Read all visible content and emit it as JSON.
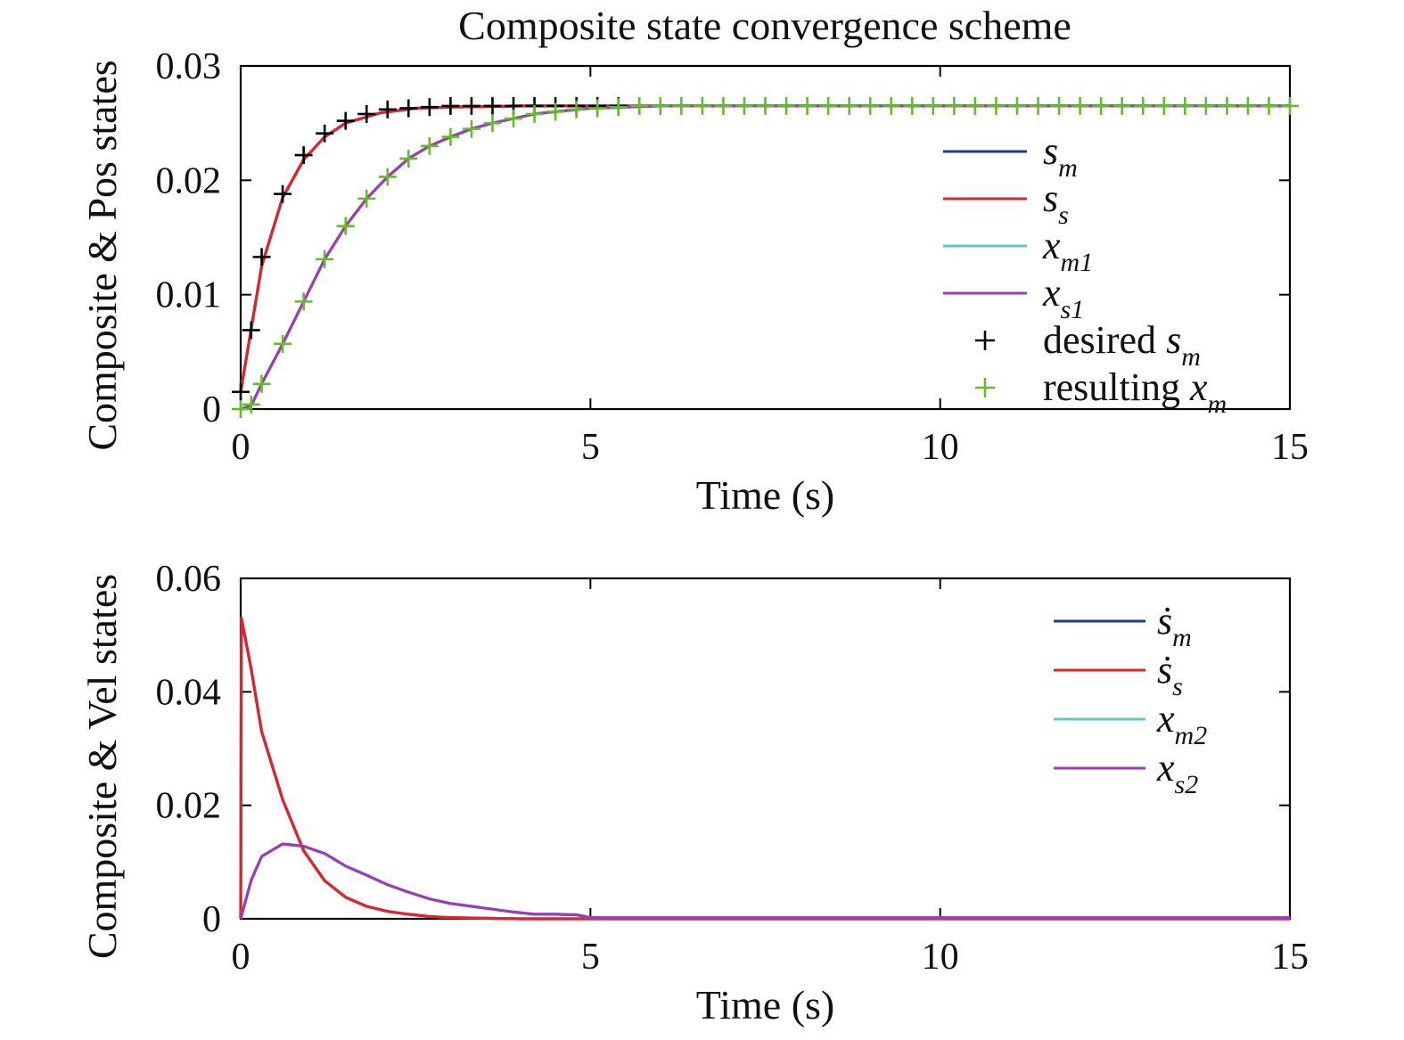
{
  "title": "Composite state convergence scheme",
  "colors": {
    "blue": "#1f3c8f",
    "red": "#e0242b",
    "cyan": "#5cc8c8",
    "purple": "#9b3db5",
    "black": "#000000",
    "green": "#66bb2a"
  },
  "chart_data": [
    {
      "type": "line",
      "xlabel": "Time (s)",
      "ylabel": "Composite & Pos states",
      "xlim": [
        0,
        15
      ],
      "ylim": [
        0,
        0.03
      ],
      "xticks": [
        "0",
        "5",
        "10",
        "15"
      ],
      "yticks": [
        "0",
        "0.01",
        "0.02",
        "0.03"
      ],
      "grid": false,
      "legend_placement": "right",
      "series": [
        {
          "name": "s_m",
          "label_main": "s",
          "label_sub": "m",
          "marker": "line",
          "color": "blue",
          "x": [
            0,
            0.3,
            0.6,
            0.9,
            1.2,
            1.5,
            2,
            2.5,
            3,
            4,
            5,
            6,
            15
          ],
          "y": [
            0.0015,
            0.0125,
            0.0185,
            0.0218,
            0.0238,
            0.025,
            0.0259,
            0.0263,
            0.0264,
            0.0265,
            0.0265,
            0.0265,
            0.0265
          ]
        },
        {
          "name": "s_s",
          "label_main": "s",
          "label_sub": "s",
          "marker": "line",
          "color": "red",
          "x": [
            0,
            0.3,
            0.6,
            0.9,
            1.2,
            1.5,
            2,
            2.5,
            3,
            4,
            5,
            6,
            15
          ],
          "y": [
            0.0015,
            0.0125,
            0.0185,
            0.0218,
            0.0238,
            0.025,
            0.0259,
            0.0263,
            0.0264,
            0.0265,
            0.0265,
            0.0265,
            0.0265
          ]
        },
        {
          "name": "x_m1",
          "label_main": "x",
          "label_sub": "m1",
          "marker": "line",
          "color": "cyan",
          "x": [
            0,
            0.15,
            0.3,
            0.6,
            0.9,
            1.2,
            1.5,
            1.8,
            2.1,
            2.4,
            2.7,
            3,
            3.3,
            3.6,
            3.9,
            4.2,
            4.5,
            5,
            6,
            15
          ],
          "y": [
            0,
            0.0003,
            0.0022,
            0.0057,
            0.0094,
            0.0131,
            0.016,
            0.0184,
            0.0203,
            0.0219,
            0.023,
            0.0238,
            0.0245,
            0.025,
            0.0254,
            0.0258,
            0.026,
            0.0263,
            0.0265,
            0.0265
          ]
        },
        {
          "name": "x_s1",
          "label_main": "x",
          "label_sub": "s1",
          "marker": "line",
          "color": "purple",
          "x": [
            0,
            0.15,
            0.3,
            0.6,
            0.9,
            1.2,
            1.5,
            1.8,
            2.1,
            2.4,
            2.7,
            3,
            3.3,
            3.6,
            3.9,
            4.2,
            4.5,
            5,
            6,
            15
          ],
          "y": [
            0,
            0.0003,
            0.0022,
            0.0057,
            0.0094,
            0.0131,
            0.016,
            0.0184,
            0.0203,
            0.0219,
            0.023,
            0.0238,
            0.0245,
            0.025,
            0.0254,
            0.0258,
            0.026,
            0.0263,
            0.0265,
            0.0265
          ]
        },
        {
          "name": "desired s_m",
          "label_main": "desired s",
          "label_sub": "m",
          "marker": "plus",
          "color": "black",
          "x": [
            0,
            0.15,
            0.3,
            0.6,
            0.9,
            1.2,
            1.5,
            1.8,
            2.1,
            2.4,
            2.7,
            3,
            3.3,
            3.6,
            3.9,
            4.2,
            4.5,
            4.8,
            5.1,
            5.4
          ],
          "y": [
            0.0015,
            0.0069,
            0.0133,
            0.0188,
            0.0222,
            0.0241,
            0.0252,
            0.0258,
            0.0262,
            0.0263,
            0.0264,
            0.0265,
            0.0265,
            0.0265,
            0.0265,
            0.0265,
            0.0265,
            0.0265,
            0.0265,
            0.0265
          ]
        },
        {
          "name": "resulting x_m",
          "label_main": "resulting x",
          "label_sub": "m",
          "marker": "plus",
          "color": "green",
          "x": [
            0,
            0.15,
            0.3,
            0.6,
            0.9,
            1.2,
            1.5,
            1.8,
            2.1,
            2.4,
            2.7,
            3,
            3.3,
            3.6,
            3.9,
            4.2,
            4.5,
            4.8,
            5.1,
            5.4,
            5.7,
            6,
            6.3,
            6.6,
            6.9,
            7.2,
            7.5,
            7.8,
            8.1,
            8.4,
            8.7,
            9,
            9.3,
            9.6,
            9.9,
            10.2,
            10.5,
            10.8,
            11.1,
            11.4,
            11.7,
            12,
            12.3,
            12.6,
            12.9,
            13.2,
            13.5,
            13.8,
            14.1,
            14.4,
            14.7,
            15
          ],
          "y": [
            0,
            0.0004,
            0.0022,
            0.0057,
            0.0094,
            0.0131,
            0.016,
            0.0184,
            0.0203,
            0.0219,
            0.023,
            0.0238,
            0.0245,
            0.025,
            0.0254,
            0.0258,
            0.026,
            0.0262,
            0.0263,
            0.0264,
            0.0265,
            0.0265,
            0.0265,
            0.0265,
            0.0265,
            0.0265,
            0.0265,
            0.0265,
            0.0265,
            0.0265,
            0.0265,
            0.0265,
            0.0265,
            0.0265,
            0.0265,
            0.0265,
            0.0265,
            0.0265,
            0.0265,
            0.0265,
            0.0265,
            0.0265,
            0.0265,
            0.0265,
            0.0265,
            0.0265,
            0.0265,
            0.0265,
            0.0265,
            0.0265,
            0.0265,
            0.0265
          ]
        }
      ]
    },
    {
      "type": "line",
      "xlabel": "Time (s)",
      "ylabel": "Composite & Vel states",
      "xlim": [
        0,
        15
      ],
      "ylim": [
        0,
        0.06
      ],
      "xticks": [
        "0",
        "5",
        "10",
        "15"
      ],
      "yticks": [
        "0",
        "0.02",
        "0.04",
        "0.06"
      ],
      "grid": false,
      "legend_placement": "top-right",
      "series": [
        {
          "name": "ṡ_m",
          "label_main": "ṡ",
          "label_sub": "m",
          "marker": "line",
          "color": "blue",
          "x": [
            0,
            0.01,
            0.15,
            0.3,
            0.6,
            0.9,
            1.2,
            1.5,
            1.8,
            2.1,
            2.4,
            2.7,
            3,
            3.5,
            4,
            5,
            15
          ],
          "y": [
            0,
            0.053,
            0.044,
            0.033,
            0.021,
            0.012,
            0.0067,
            0.0038,
            0.0022,
            0.0013,
            0.0008,
            0.0004,
            0.0002,
            0.0001,
            0,
            0,
            0
          ]
        },
        {
          "name": "ṡ_s",
          "label_main": "ṡ",
          "label_sub": "s",
          "marker": "line",
          "color": "red",
          "x": [
            0,
            0.01,
            0.15,
            0.3,
            0.6,
            0.9,
            1.2,
            1.5,
            1.8,
            2.1,
            2.4,
            2.7,
            3,
            3.5,
            4,
            5,
            15
          ],
          "y": [
            0,
            0.053,
            0.044,
            0.033,
            0.021,
            0.012,
            0.0067,
            0.0038,
            0.0022,
            0.0013,
            0.0008,
            0.0004,
            0.0002,
            0.0001,
            0,
            0,
            0
          ]
        },
        {
          "name": "x_m2",
          "label_main": "x",
          "label_sub": "m2",
          "marker": "line",
          "color": "cyan",
          "x": [
            0,
            0.15,
            0.3,
            0.6,
            0.9,
            1.2,
            1.5,
            1.8,
            2.1,
            2.4,
            2.7,
            3,
            3.3,
            3.6,
            3.9,
            4.2,
            4.5,
            4.8,
            5,
            15
          ],
          "y": [
            0,
            0.0068,
            0.011,
            0.0132,
            0.0128,
            0.0115,
            0.0093,
            0.0077,
            0.006,
            0.0047,
            0.0035,
            0.0027,
            0.0022,
            0.0017,
            0.0012,
            0.0008,
            0.0008,
            0.0007,
            0.0002,
            0.0002
          ]
        },
        {
          "name": "x_s2",
          "label_main": "x",
          "label_sub": "s2",
          "marker": "line",
          "color": "purple",
          "x": [
            0,
            0.15,
            0.3,
            0.6,
            0.9,
            1.2,
            1.5,
            1.8,
            2.1,
            2.4,
            2.7,
            3,
            3.3,
            3.6,
            3.9,
            4.2,
            4.5,
            4.8,
            5,
            15
          ],
          "y": [
            0,
            0.0068,
            0.011,
            0.0132,
            0.0128,
            0.0115,
            0.0093,
            0.0077,
            0.006,
            0.0047,
            0.0035,
            0.0027,
            0.0022,
            0.0017,
            0.0012,
            0.0008,
            0.0008,
            0.0007,
            0.0002,
            0.0002
          ]
        }
      ]
    }
  ]
}
